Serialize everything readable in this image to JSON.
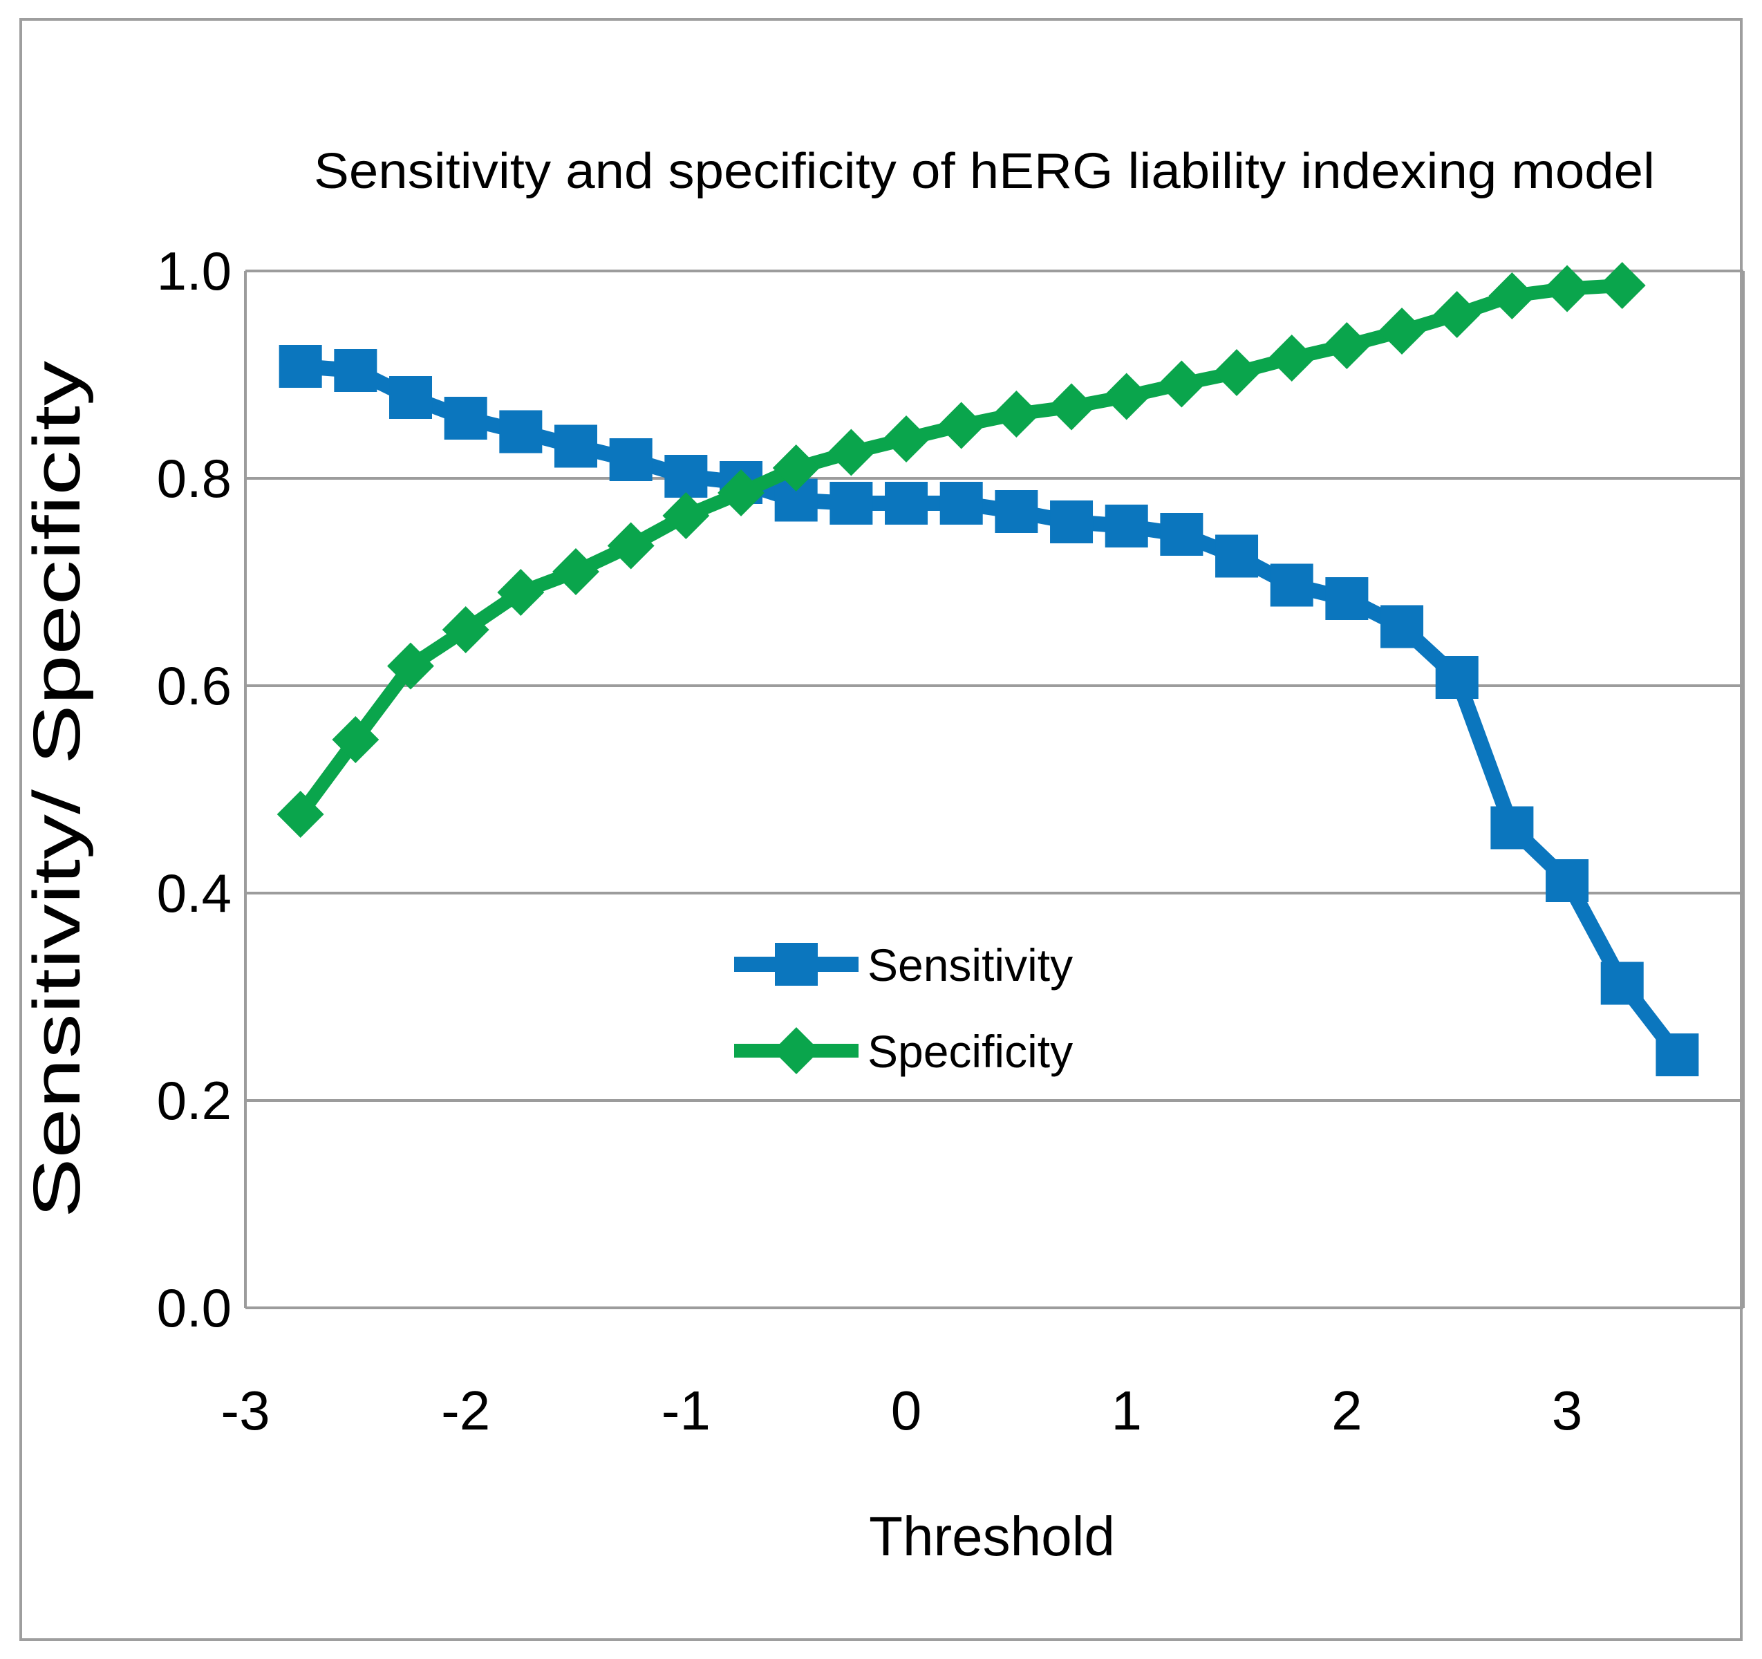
{
  "chart_data": {
    "type": "line",
    "title": "Sensitivity and specificity of hERG liability indexing model",
    "xlabel": "Threshold",
    "ylabel": "Sensitivity/ Specificity",
    "xlim": [
      -3.0,
      3.8
    ],
    "ylim": [
      0.0,
      1.0
    ],
    "x_ticks": [
      -3,
      -2,
      -1,
      0,
      1,
      2,
      3
    ],
    "y_ticks": [
      0.0,
      0.2,
      0.4,
      0.6,
      0.8,
      1.0
    ],
    "grid": "horizontal",
    "legend_position": "inside-center",
    "colors": {
      "sensitivity": "#0B76BE",
      "specificity": "#0AA54C",
      "gridline": "#9C9C9C",
      "axis": "#9C9C9C",
      "border": "#9E9E9E"
    },
    "series": [
      {
        "name": "Sensitivity",
        "color": "#0B76BE",
        "marker": "square",
        "line_width": 22,
        "x": [
          -2.75,
          -2.5,
          -2.25,
          -2.0,
          -1.75,
          -1.5,
          -1.25,
          -1.0,
          -0.75,
          -0.5,
          -0.25,
          0.0,
          0.25,
          0.5,
          0.75,
          1.0,
          1.25,
          1.5,
          1.75,
          2.0,
          2.25,
          2.5,
          2.75,
          3.0,
          3.25,
          3.5
        ],
        "values": [
          0.908,
          0.904,
          0.878,
          0.858,
          0.845,
          0.831,
          0.818,
          0.802,
          0.796,
          0.779,
          0.776,
          0.776,
          0.776,
          0.768,
          0.758,
          0.754,
          0.746,
          0.725,
          0.697,
          0.684,
          0.657,
          0.608,
          0.463,
          0.412,
          0.313,
          0.244
        ]
      },
      {
        "name": "Specificity",
        "color": "#0AA54C",
        "marker": "diamond",
        "line_width": 20,
        "x": [
          -2.75,
          -2.5,
          -2.25,
          -2.0,
          -1.75,
          -1.5,
          -1.25,
          -1.0,
          -0.75,
          -0.5,
          -0.25,
          0.0,
          0.25,
          0.5,
          0.75,
          1.0,
          1.25,
          1.5,
          1.75,
          2.0,
          2.25,
          2.5,
          2.75,
          3.0,
          3.25
        ],
        "values": [
          0.476,
          0.548,
          0.619,
          0.654,
          0.69,
          0.71,
          0.735,
          0.764,
          0.786,
          0.81,
          0.825,
          0.838,
          0.851,
          0.862,
          0.869,
          0.879,
          0.891,
          0.902,
          0.916,
          0.928,
          0.942,
          0.958,
          0.976,
          0.983,
          0.986
        ]
      }
    ],
    "legend": {
      "entries": [
        "Sensitivity",
        "Specificity"
      ]
    }
  }
}
